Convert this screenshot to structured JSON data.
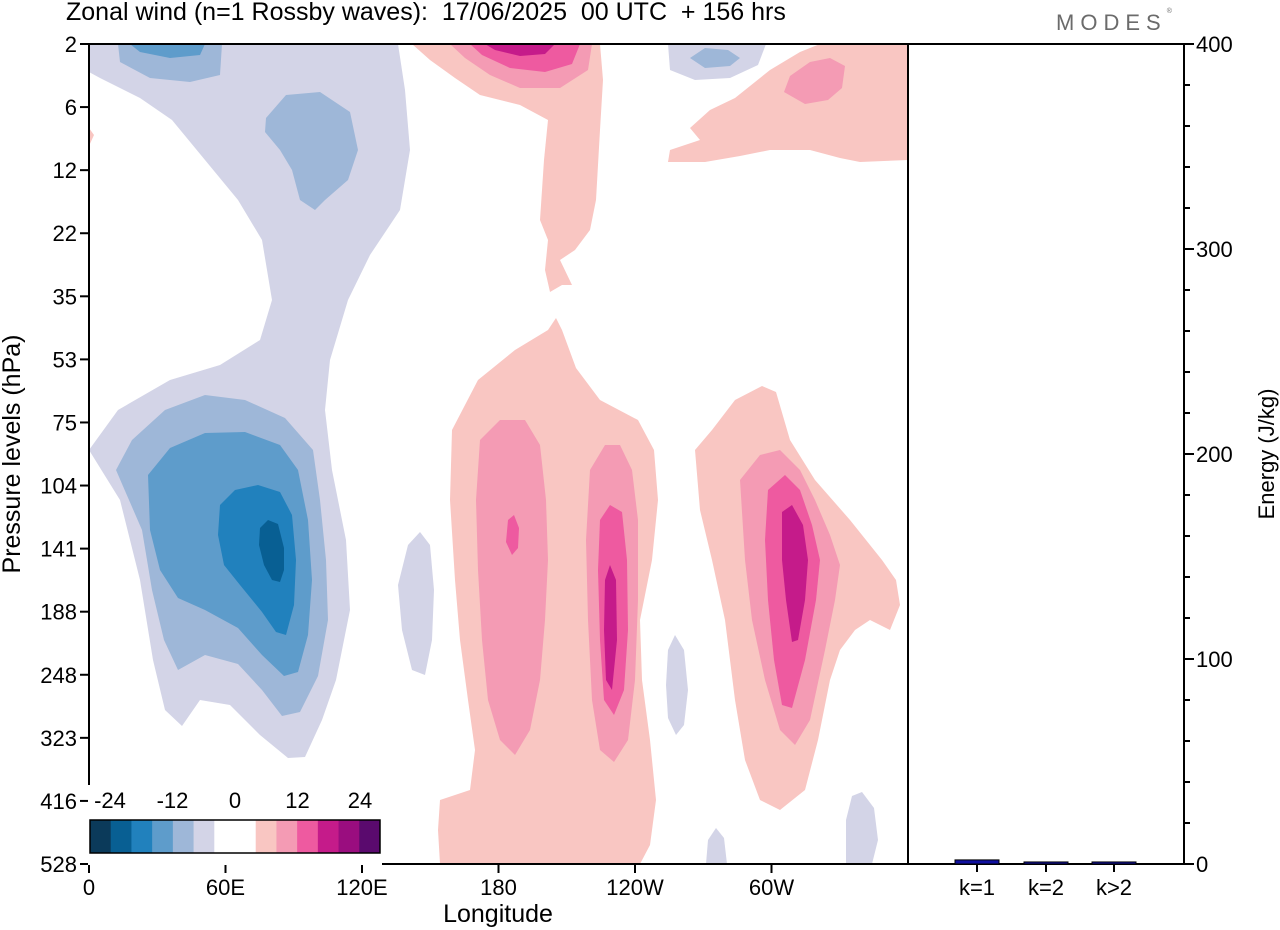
{
  "header": {
    "title": "Zonal wind (n=1 Rossby waves):  17/06/2025  00 UTC  + 156 hrs",
    "brand": "MODES",
    "brand_mark": "®"
  },
  "colors": {
    "scale": [
      "#0b3a5a",
      "#085f93",
      "#2181bd",
      "#5e9ccb",
      "#9eb7d8",
      "#d3d4e7",
      "#ffffff",
      "#ffffff",
      "#f9c6c2",
      "#f49bb4",
      "#ee5aa0",
      "#c51b8a",
      "#9a0d7f",
      "#5a0a6e"
    ],
    "bar": "#1010a0"
  },
  "chart_data": [
    {
      "type": "heatmap",
      "title": "Zonal wind (n=1 Rossby waves):  17/06/2025  00 UTC  + 156 hrs",
      "xlabel": "Longitude",
      "ylabel": "Pressure levels (hPa)",
      "x_ticks": [
        "0",
        "60E",
        "120E",
        "180",
        "120W",
        "60W"
      ],
      "x_range_deg": [
        0,
        360
      ],
      "y_ticks": [
        "2",
        "6",
        "12",
        "22",
        "35",
        "53",
        "75",
        "104",
        "141",
        "188",
        "248",
        "323",
        "416",
        "528"
      ],
      "colorbar": {
        "labels": [
          "-24",
          "-12",
          "0",
          "12",
          "24"
        ],
        "levels": [
          -30,
          -27,
          -24,
          -21,
          -18,
          -15,
          -12,
          -9,
          -6,
          -3,
          0,
          3,
          6,
          9,
          12,
          15,
          18,
          21,
          24,
          27,
          30
        ],
        "boundaries": [
          -24,
          -20,
          -16,
          -12,
          -8,
          -4,
          0,
          4,
          8,
          12,
          16,
          20,
          24
        ]
      },
      "features": [
        {
          "name": "negative-lower-60E-90E",
          "lon": 78,
          "level": "141",
          "min": -24
        },
        {
          "name": "negative-upper-60E",
          "lon": 55,
          "level": "12",
          "min": -6
        },
        {
          "name": "positive-lower-180",
          "lon": 183,
          "level": "141",
          "max": 16
        },
        {
          "name": "positive-lower-115W",
          "lon": 244,
          "level": "188",
          "max": 14
        },
        {
          "name": "positive-lower-65W",
          "lon": 296,
          "level": "141",
          "max": 20
        },
        {
          "name": "positive-top-165W",
          "lon": 195,
          "level": "2",
          "max": 16
        },
        {
          "name": "positive-upper-30W",
          "lon": 322,
          "level": "6",
          "max": 10
        }
      ],
      "grid": false,
      "legend": "bottom-left"
    },
    {
      "type": "bar",
      "ylabel": "Energy (J/kg)",
      "categories": [
        "k=1",
        "k=2",
        "k>2"
      ],
      "values": [
        2,
        1,
        1
      ],
      "ylim": [
        0,
        400
      ],
      "y_ticks": [
        "0",
        "100",
        "200",
        "300",
        "400"
      ],
      "grid": false
    }
  ]
}
